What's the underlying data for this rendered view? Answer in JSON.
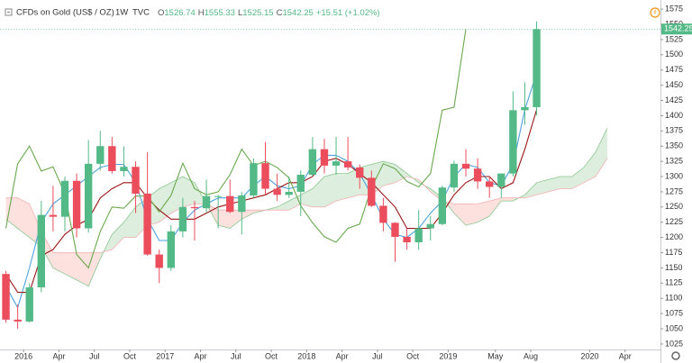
{
  "chart_data": {
    "type": "candlestick",
    "symbol": "CFDs on Gold (US$ / OZ)",
    "interval": "1W",
    "source": "TVC",
    "quote": [
      {
        "label": "O",
        "value": 1526.74
      },
      {
        "label": "H",
        "value": 1555.33
      },
      {
        "label": "L",
        "value": 1525.15
      },
      {
        "label": "C",
        "value": 1542.25
      }
    ],
    "change": "+15.51 (+1.02%)",
    "last_price": 1542.25,
    "categories": [
      null,
      null,
      "2016",
      null,
      null,
      "Apr",
      null,
      null,
      "Jul",
      null,
      null,
      "Oct",
      null,
      null,
      "2017",
      null,
      null,
      "Apr",
      null,
      null,
      "Jul",
      null,
      null,
      "Oct",
      null,
      null,
      "2018",
      null,
      null,
      "Apr",
      null,
      null,
      "Jul",
      null,
      null,
      "Oct",
      null,
      null,
      "2019",
      null,
      null,
      null,
      "May",
      null,
      null,
      "Aug",
      null,
      null,
      null,
      null,
      "2020",
      null,
      null,
      "Apr",
      null,
      null
    ],
    "open": [
      1140,
      1065,
      1062,
      1118,
      1237,
      1234,
      1293,
      1215,
      1321,
      1350,
      1309,
      1316,
      1272,
      1172,
      1150,
      1210,
      1250,
      1248,
      1268,
      1268,
      1242,
      1269,
      1322,
      1280,
      1270,
      1275,
      1303,
      1345,
      1318,
      1325,
      1315,
      1298,
      1252,
      1224,
      1201,
      1192,
      1215,
      1222,
      1282,
      1321,
      1313,
      1292,
      1283,
      1305,
      1409,
      1414,
      null,
      null,
      null,
      null,
      null,
      null,
      null,
      null,
      null,
      null
    ],
    "high": [
      1145,
      1090,
      1125,
      1260,
      1285,
      1300,
      1305,
      1360,
      1375,
      1365,
      1350,
      1325,
      1340,
      1180,
      1220,
      1265,
      1260,
      1295,
      1270,
      1295,
      1275,
      1330,
      1357,
      1305,
      1300,
      1310,
      1365,
      1362,
      1365,
      1365,
      1320,
      1310,
      1265,
      1225,
      1215,
      1245,
      1235,
      1285,
      1326,
      1345,
      1330,
      1300,
      1305,
      1440,
      1455,
      1555,
      null,
      null,
      null,
      null,
      null,
      null,
      null,
      null,
      null,
      null
    ],
    "low": [
      1060,
      1050,
      1060,
      1110,
      1210,
      1210,
      1200,
      1208,
      1310,
      1305,
      1300,
      1240,
      1170,
      1125,
      1145,
      1200,
      1195,
      1240,
      1215,
      1240,
      1205,
      1265,
      1270,
      1260,
      1265,
      1235,
      1300,
      1305,
      1303,
      1310,
      1280,
      1250,
      1210,
      1160,
      1180,
      1180,
      1195,
      1220,
      1275,
      1300,
      1280,
      1265,
      1265,
      1300,
      1385,
      1400,
      null,
      null,
      null,
      null,
      null,
      null,
      null,
      null,
      null,
      null
    ],
    "close": [
      1065,
      1062,
      1118,
      1237,
      1234,
      1293,
      1215,
      1321,
      1350,
      1309,
      1316,
      1272,
      1172,
      1150,
      1210,
      1250,
      1248,
      1268,
      1268,
      1242,
      1269,
      1322,
      1280,
      1270,
      1275,
      1303,
      1345,
      1318,
      1325,
      1315,
      1298,
      1252,
      1224,
      1201,
      1192,
      1215,
      1222,
      1282,
      1321,
      1313,
      1292,
      1283,
      1305,
      1409,
      1414,
      1542,
      null,
      null,
      null,
      null,
      null,
      null,
      null,
      null,
      null,
      null
    ],
    "up_color": "#53b987",
    "down_color": "#eb4d5c",
    "lines": [
      {
        "color": "#4fa3e0",
        "values": [
          1120,
          1085,
          1150,
          1225,
          1255,
          1270,
          1285,
          1300,
          1315,
          1320,
          1320,
          1290,
          1230,
          1195,
          1195,
          1225,
          1245,
          1255,
          1265,
          1265,
          1265,
          1285,
          1300,
          1285,
          1280,
          1285,
          1320,
          1335,
          1335,
          1325,
          1305,
          1270,
          1230,
          1205,
          1200,
          1215,
          1240,
          1260,
          1300,
          1320,
          1315,
          1290,
          1285,
          1320,
          1410,
          1470,
          null,
          null,
          null,
          null,
          null,
          null,
          null,
          null,
          null,
          null
        ]
      },
      {
        "color": "#991515",
        "values": [
          1140,
          1110,
          1110,
          1170,
          1180,
          1205,
          1220,
          1230,
          1265,
          1280,
          1290,
          1290,
          1265,
          1245,
          1230,
          1230,
          1230,
          1240,
          1250,
          1255,
          1260,
          1265,
          1270,
          1280,
          1290,
          1290,
          1300,
          1325,
          1330,
          1320,
          1305,
          1290,
          1270,
          1250,
          1215,
          1215,
          1215,
          1240,
          1270,
          1290,
          1300,
          1300,
          1280,
          1290,
          1345,
          1410,
          null,
          null,
          null,
          null,
          null,
          null,
          null,
          null,
          null,
          null
        ]
      },
      {
        "color": "#6aa84f",
        "values": [
          1215,
          1321,
          1350,
          1309,
          1316,
          1272,
          1172,
          1150,
          1210,
          1250,
          1248,
          1268,
          1268,
          1242,
          1269,
          1322,
          1280,
          1270,
          1275,
          1303,
          1345,
          1318,
          1325,
          1315,
          1298,
          1252,
          1224,
          1201,
          1192,
          1215,
          1222,
          1282,
          1321,
          1313,
          1292,
          1283,
          1305,
          1409,
          1414,
          1542,
          null,
          null,
          null,
          null,
          null,
          null,
          null,
          null,
          null,
          null,
          null,
          null,
          null,
          null,
          null,
          null
        ]
      }
    ],
    "cloud": {
      "up_color": "rgba(67,160,71,0.18)",
      "down_color": "rgba(244,67,54,0.16)",
      "span_a": {
        "color": "#8bc78e",
        "values": [
          1230,
          1215,
          1200,
          1185,
          1150,
          1140,
          1130,
          1120,
          1165,
          1205,
          1225,
          1250,
          1265,
          1280,
          1290,
          1300,
          1290,
          1255,
          1220,
          1215,
          1230,
          1240,
          1245,
          1250,
          1260,
          1270,
          1280,
          1300,
          1305,
          1305,
          1315,
          1320,
          1325,
          1320,
          1305,
          1290,
          1280,
          1265,
          1240,
          1220,
          1225,
          1235,
          1260,
          1260,
          1270,
          1290,
          1295,
          1300,
          1300,
          1315,
          1340,
          1380,
          null,
          null,
          null,
          null
        ]
      },
      "span_b": {
        "color": "#f3b0b0",
        "values": [
          1265,
          1265,
          1255,
          1210,
          1175,
          1175,
          1175,
          1175,
          1175,
          1180,
          1200,
          1200,
          1220,
          1225,
          1240,
          1250,
          1255,
          1255,
          1245,
          1245,
          1245,
          1245,
          1245,
          1245,
          1245,
          1255,
          1250,
          1250,
          1260,
          1265,
          1270,
          1270,
          1285,
          1290,
          1300,
          1295,
          1275,
          1260,
          1255,
          1255,
          1255,
          1260,
          1265,
          1265,
          1265,
          1270,
          1275,
          1280,
          1280,
          1290,
          1300,
          1330,
          null,
          null,
          null,
          null
        ]
      }
    },
    "ylim": [
      1016,
      1590
    ],
    "yticks": [
      1025,
      1050,
      1075,
      1100,
      1125,
      1150,
      1175,
      1200,
      1225,
      1250,
      1275,
      1300,
      1325,
      1350,
      1375,
      1400,
      1425,
      1450,
      1475,
      1500,
      1525,
      1550,
      1575
    ],
    "grid": false
  }
}
